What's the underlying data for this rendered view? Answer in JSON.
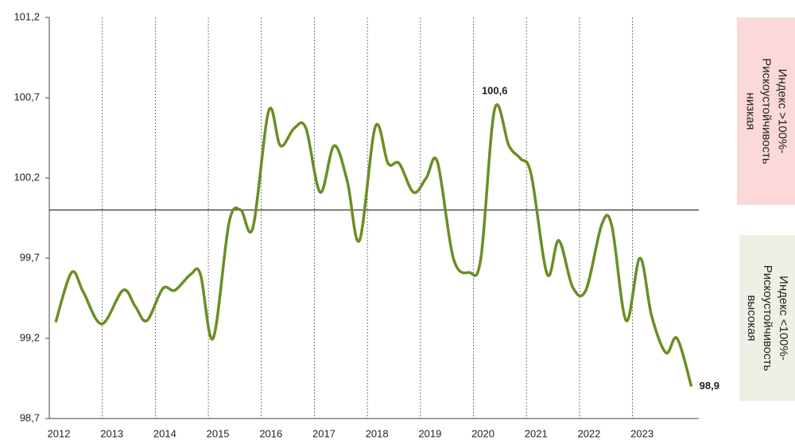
{
  "chart_data": {
    "type": "line",
    "x": [
      2012.12,
      2012.42,
      2012.64,
      2012.99,
      2013.39,
      2013.62,
      2013.84,
      2014.14,
      2014.37,
      2014.67,
      2014.85,
      2015.09,
      2015.39,
      2015.61,
      2015.84,
      2016.14,
      2016.36,
      2016.62,
      2016.84,
      2017.11,
      2017.37,
      2017.62,
      2017.85,
      2018.15,
      2018.39,
      2018.6,
      2018.87,
      2019.11,
      2019.32,
      2019.62,
      2019.92,
      2020.14,
      2020.4,
      2020.67,
      2020.89,
      2021.09,
      2021.39,
      2021.61,
      2021.87,
      2022.12,
      2022.42,
      2022.61,
      2022.88,
      2023.14,
      2023.36,
      2023.63,
      2023.84,
      2024.11
    ],
    "series": [
      {
        "color": "#6b8e23",
        "values": [
          99.3,
          99.61,
          99.49,
          99.29,
          99.5,
          99.4,
          99.31,
          99.51,
          99.5,
          99.6,
          99.6,
          99.2,
          99.92,
          100.0,
          99.89,
          100.62,
          100.4,
          100.51,
          100.51,
          100.11,
          100.4,
          100.18,
          99.81,
          100.52,
          100.29,
          100.29,
          100.11,
          100.2,
          100.3,
          99.7,
          99.61,
          99.7,
          100.63,
          100.4,
          100.32,
          100.22,
          99.6,
          99.81,
          99.52,
          99.5,
          99.91,
          99.9,
          99.31,
          99.7,
          99.34,
          99.11,
          99.2,
          98.9
        ],
        "value_labels": [
          null,
          null,
          null,
          null,
          null,
          null,
          null,
          null,
          null,
          null,
          null,
          null,
          null,
          null,
          null,
          null,
          null,
          null,
          null,
          null,
          null,
          null,
          null,
          null,
          null,
          null,
          null,
          null,
          null,
          null,
          null,
          null,
          "100,6",
          null,
          null,
          null,
          null,
          null,
          null,
          null,
          null,
          null,
          null,
          null,
          null,
          null,
          null,
          "98,9"
        ]
      }
    ],
    "xlim": [
      2012,
      2024.25
    ],
    "xticks": [
      2012,
      2013,
      2014,
      2015,
      2016,
      2017,
      2018,
      2019,
      2020,
      2021,
      2022,
      2023
    ],
    "ylim": [
      98.7,
      101.2
    ],
    "yticks": [
      {
        "value": 98.7,
        "label": "98,7"
      },
      {
        "value": 99.2,
        "label": "99,2"
      },
      {
        "value": 99.7,
        "label": "99,7"
      },
      {
        "value": 100.2,
        "label": "100,2"
      },
      {
        "value": 100.7,
        "label": "100,7"
      },
      {
        "value": 101.2,
        "label": "101,2"
      }
    ],
    "reference_line": 100,
    "x_grid": true,
    "side_notes": [
      {
        "lines": [
          "Индекс >100%-",
          "Рискоустойчивость",
          "низкая"
        ],
        "color": "#fcd9d9"
      },
      {
        "lines": [
          "Индекс <100%-",
          "Рискоустойчивость",
          "высокая"
        ],
        "color": "#eef0e6"
      }
    ]
  }
}
